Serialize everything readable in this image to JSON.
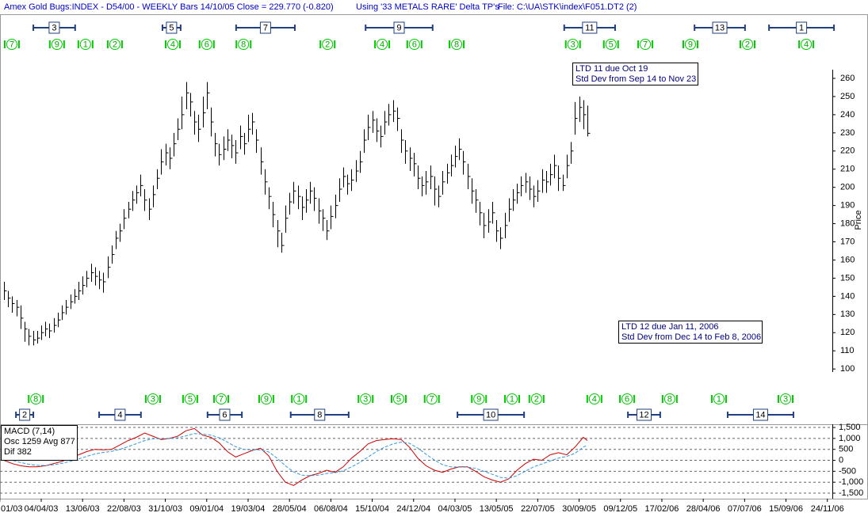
{
  "chart_data": [
    {
      "type": "hlc",
      "title": "Amex Gold Bugs:INDEX - D54/00  - WEEKLY Bars  14/10/05 Close = 229.770 (-0.820)",
      "subtitle": "Using '33 METALS RARE' Delta TP's",
      "file_label": "File: C:\\UA\\STK\\index\\F051.DT2 (2)",
      "y_label": "Price",
      "color": "#000000",
      "xlim": [
        -0.96,
        200.2
      ],
      "ylim": [
        70,
        295.3
      ],
      "yticks": [
        100,
        110,
        120,
        130,
        140,
        150,
        160,
        170,
        180,
        190,
        200,
        210,
        220,
        230,
        240,
        250,
        260
      ],
      "high": [
        148,
        143,
        140,
        138,
        135,
        126,
        122,
        121,
        121,
        124,
        126,
        125,
        128,
        131,
        135,
        138,
        141,
        144,
        148,
        151,
        154,
        158,
        156,
        154,
        153,
        162,
        168,
        176,
        180,
        188,
        192,
        198,
        201,
        207,
        199,
        194,
        201,
        210,
        221,
        224,
        222,
        230,
        238,
        250,
        258,
        252,
        242,
        240,
        250,
        258,
        244,
        230,
        224,
        228,
        232,
        229,
        226,
        234,
        230,
        240,
        241,
        232,
        222,
        210,
        200,
        192,
        182,
        175,
        190,
        197,
        203,
        201,
        195,
        199,
        203,
        200,
        194,
        188,
        182,
        190,
        196,
        205,
        211,
        207,
        210,
        215,
        220,
        232,
        240,
        242,
        238,
        234,
        242,
        246,
        248,
        244,
        232,
        226,
        222,
        219,
        212,
        206,
        209,
        212,
        206,
        201,
        209,
        213,
        218,
        223,
        227,
        220,
        213,
        205,
        199,
        192,
        186,
        188,
        192,
        182,
        178,
        186,
        194,
        199,
        202,
        206,
        208,
        206,
        201,
        204,
        210,
        209,
        213,
        218,
        212,
        207,
        218,
        225,
        247,
        250,
        248,
        245
      ],
      "low": [
        138,
        134,
        131,
        129,
        122,
        115,
        113,
        113,
        114,
        116,
        118,
        117,
        120,
        123,
        127,
        130,
        133,
        136,
        138,
        141,
        145,
        148,
        146,
        144,
        142,
        150,
        158,
        166,
        170,
        177,
        183,
        187,
        191,
        195,
        187,
        182,
        189,
        199,
        207,
        212,
        210,
        217,
        226,
        232,
        243,
        239,
        229,
        225,
        233,
        243,
        228,
        217,
        212,
        215,
        220,
        216,
        213,
        221,
        218,
        225,
        229,
        219,
        207,
        196,
        188,
        178,
        167,
        164,
        175,
        185,
        191,
        188,
        182,
        186,
        191,
        187,
        180,
        176,
        171,
        177,
        183,
        192,
        200,
        196,
        198,
        203,
        208,
        219,
        226,
        230,
        225,
        222,
        229,
        234,
        236,
        231,
        219,
        213,
        209,
        206,
        199,
        195,
        196,
        199,
        190,
        189,
        196,
        202,
        206,
        211,
        215,
        207,
        199,
        191,
        186,
        179,
        172,
        175,
        180,
        170,
        166,
        172,
        181,
        187,
        191,
        195,
        197,
        193,
        189,
        192,
        197,
        197,
        201,
        205,
        198,
        198,
        205,
        213,
        229,
        236,
        232,
        228
      ],
      "close": [
        143,
        139,
        136,
        134,
        128,
        122,
        118,
        116,
        117,
        120,
        122,
        121,
        124,
        127,
        131,
        134,
        137,
        140,
        143,
        146,
        150,
        153,
        151,
        149,
        148,
        156,
        163,
        172,
        176,
        183,
        188,
        193,
        197,
        201,
        193,
        188,
        196,
        205,
        214,
        219,
        216,
        224,
        232,
        240,
        252,
        247,
        236,
        232,
        241,
        252,
        236,
        224,
        218,
        221,
        226,
        223,
        219,
        228,
        224,
        232,
        236,
        226,
        214,
        203,
        195,
        185,
        176,
        168,
        183,
        192,
        198,
        195,
        189,
        193,
        198,
        194,
        187,
        183,
        176,
        184,
        190,
        199,
        206,
        202,
        204,
        209,
        214,
        226,
        233,
        237,
        231,
        228,
        236,
        240,
        242,
        238,
        226,
        220,
        216,
        213,
        205,
        201,
        203,
        206,
        199,
        195,
        203,
        208,
        212,
        217,
        221,
        214,
        206,
        198,
        193,
        186,
        179,
        181,
        186,
        176,
        172,
        179,
        188,
        193,
        197,
        201,
        203,
        199,
        195,
        198,
        204,
        203,
        207,
        212,
        205,
        201,
        212,
        220,
        238,
        244,
        240,
        229.77
      ],
      "cycles_top": [
        {
          "label": "3",
          "start": 7.1,
          "end": 17.2
        },
        {
          "label": "5",
          "start": 38.3,
          "end": 42.7
        },
        {
          "label": "7",
          "start": 56.1,
          "end": 70.3
        },
        {
          "label": "9",
          "start": 87.4,
          "end": 103.6
        },
        {
          "label": "11",
          "start": 135.4,
          "end": 147.7
        },
        {
          "label": "13",
          "start": 166.9,
          "end": 179.1
        },
        {
          "label": "1",
          "start": 184.9,
          "end": 200.6
        }
      ],
      "cycles_bottom": [
        {
          "label": "2",
          "start": 2.9,
          "end": 7.1
        },
        {
          "label": "4",
          "start": 23.0,
          "end": 33.1
        },
        {
          "label": "6",
          "start": 49.2,
          "end": 57.5
        },
        {
          "label": "8",
          "start": 69.3,
          "end": 83.3
        },
        {
          "label": "10",
          "start": 109.6,
          "end": 125.7
        },
        {
          "label": "12",
          "start": 150.8,
          "end": 158.6
        },
        {
          "label": "14",
          "start": 174.9,
          "end": 190.8
        }
      ],
      "turns_top": [
        {
          "label": "7",
          "x": 1.9
        },
        {
          "label": "9",
          "x": 12.8
        },
        {
          "label": "1",
          "x": 19.7
        },
        {
          "label": "2",
          "x": 26.8
        },
        {
          "label": "4",
          "x": 40.8
        },
        {
          "label": "6",
          "x": 49.0
        },
        {
          "label": "8",
          "x": 57.9
        },
        {
          "label": "2",
          "x": 78.2
        },
        {
          "label": "4",
          "x": 91.4
        },
        {
          "label": "6",
          "x": 99.2
        },
        {
          "label": "8",
          "x": 109.4
        },
        {
          "label": "3",
          "x": 137.5
        },
        {
          "label": "5",
          "x": 146.7
        },
        {
          "label": "7",
          "x": 155.0
        },
        {
          "label": "9",
          "x": 165.9
        },
        {
          "label": "2",
          "x": 179.7
        },
        {
          "label": "4",
          "x": 193.9
        }
      ],
      "turns_bottom": [
        {
          "label": "8",
          "x": 7.7
        },
        {
          "label": "3",
          "x": 36.0
        },
        {
          "label": "5",
          "x": 45.0
        },
        {
          "label": "7",
          "x": 52.5
        },
        {
          "label": "9",
          "x": 63.4
        },
        {
          "label": "1",
          "x": 71.3
        },
        {
          "label": "3",
          "x": 87.4
        },
        {
          "label": "5",
          "x": 95.4
        },
        {
          "label": "7",
          "x": 103.4
        },
        {
          "label": "9",
          "x": 114.8
        },
        {
          "label": "1",
          "x": 122.8
        },
        {
          "label": "2",
          "x": 128.7
        },
        {
          "label": "4",
          "x": 142.7
        },
        {
          "label": "6",
          "x": 150.6
        },
        {
          "label": "8",
          "x": 160.9
        },
        {
          "label": "1",
          "x": 172.8
        },
        {
          "label": "3",
          "x": 188.9
        }
      ],
      "annotations": [
        [
          "LTD 11 due Oct 19",
          "Std Dev from Sep 14 to Nov 23"
        ],
        [
          "LTD 12 due Jan 11, 2006",
          "Std Dev from Dec 14 to Feb 8, 2006"
        ]
      ]
    },
    {
      "type": "line",
      "legend": [
        "MACD (7,14)",
        "Osc 1259 Avg 877",
        "Dif 382"
      ],
      "xlim": [
        -0.96,
        200.2
      ],
      "ylim": [
        -1680,
        1610
      ],
      "grid": true,
      "yticks": [
        {
          "value": 1500,
          "label": "1,500"
        },
        {
          "value": 1000,
          "label": "1,000"
        },
        500,
        0,
        -500,
        {
          "value": -1000,
          "label": "-1,000"
        },
        {
          "value": -1500,
          "label": "-1,500"
        }
      ],
      "xticks": [
        {
          "value": -1,
          "label": "01/03"
        },
        {
          "value": 9,
          "label": "04/04/03"
        },
        {
          "value": 19,
          "label": "13/06/03"
        },
        {
          "value": 29,
          "label": "22/08/03"
        },
        {
          "value": 39,
          "label": "31/10/03"
        },
        {
          "value": 49,
          "label": "09/01/04"
        },
        {
          "value": 59,
          "label": "19/03/04"
        },
        {
          "value": 69,
          "label": "28/05/04"
        },
        {
          "value": 79,
          "label": "06/08/04"
        },
        {
          "value": 89,
          "label": "15/10/04"
        },
        {
          "value": 99,
          "label": "24/12/04"
        },
        {
          "value": 109,
          "label": "04/03/05"
        },
        {
          "value": 119,
          "label": "13/05/05"
        },
        {
          "value": 129,
          "label": "22/07/05"
        },
        {
          "value": 139,
          "label": "30/09/05"
        },
        {
          "value": 149,
          "label": "09/12/05"
        },
        {
          "value": 159,
          "label": "17/02/06"
        },
        {
          "value": 169,
          "label": "28/04/06"
        },
        {
          "value": 179,
          "label": "07/07/06"
        },
        {
          "value": 189,
          "label": "15/09/06"
        },
        {
          "value": 199,
          "label": "24/11/06"
        }
      ],
      "x": [
        0,
        2,
        4,
        6,
        8,
        10,
        12,
        14,
        16,
        18,
        20,
        22,
        24,
        26,
        28,
        30,
        32,
        34,
        36,
        38,
        40,
        42,
        44,
        46,
        48,
        50,
        52,
        54,
        56,
        58,
        60,
        62,
        64,
        66,
        68,
        70,
        72,
        74,
        76,
        78,
        80,
        82,
        84,
        86,
        88,
        90,
        92,
        94,
        96,
        98,
        100,
        102,
        104,
        106,
        108,
        110,
        112,
        114,
        116,
        118,
        120,
        122,
        124,
        126,
        128,
        130,
        132,
        134,
        136,
        138,
        140,
        141
      ],
      "series": [
        {
          "color": "#cc0000",
          "values": [
            0,
            -150,
            -250,
            -300,
            -300,
            -250,
            -150,
            -50,
            100,
            250,
            400,
            500,
            480,
            500,
            700,
            900,
            1050,
            1250,
            1100,
            950,
            1000,
            1100,
            1350,
            1450,
            1150,
            1050,
            800,
            400,
            150,
            300,
            450,
            550,
            200,
            -500,
            -1000,
            -1150,
            -900,
            -700,
            -600,
            -450,
            -550,
            -300,
            100,
            400,
            750,
            900,
            950,
            980,
            950,
            600,
            100,
            -250,
            -450,
            -550,
            -400,
            -300,
            -300,
            -500,
            -750,
            -900,
            -1000,
            -850,
            -450,
            -150,
            50,
            0,
            250,
            350,
            250,
            600,
            1050,
            900
          ]
        },
        {
          "color": "#3399dd",
          "values": [
            100,
            0,
            -100,
            -180,
            -230,
            -240,
            -200,
            -140,
            -50,
            60,
            180,
            290,
            360,
            410,
            500,
            620,
            760,
            900,
            980,
            990,
            1000,
            1030,
            1120,
            1220,
            1200,
            1150,
            1030,
            830,
            620,
            500,
            470,
            480,
            380,
            100,
            -250,
            -530,
            -680,
            -700,
            -680,
            -600,
            -570,
            -480,
            -300,
            -100,
            150,
            400,
            600,
            750,
            830,
            780,
            560,
            280,
            20,
            -200,
            -300,
            -310,
            -310,
            -370,
            -500,
            -640,
            -780,
            -820,
            -700,
            -500,
            -300,
            -170,
            -30,
            100,
            180,
            320,
            600,
            700
          ]
        }
      ]
    }
  ]
}
